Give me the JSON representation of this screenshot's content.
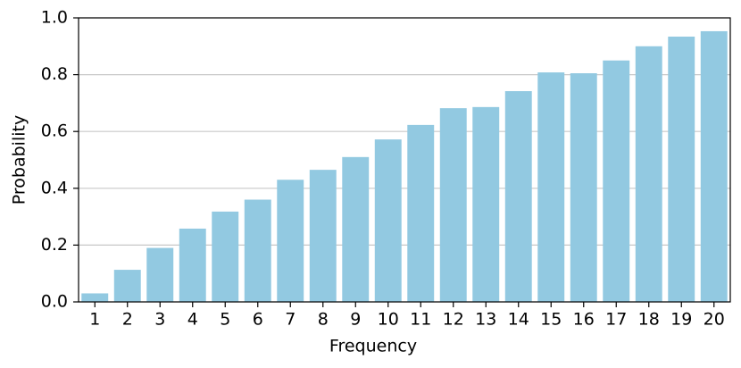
{
  "chart_data": {
    "type": "bar",
    "x_label": "Frequency",
    "y_label": "Probability",
    "categories": [
      "1",
      "2",
      "3",
      "4",
      "5",
      "6",
      "7",
      "8",
      "9",
      "10",
      "11",
      "12",
      "13",
      "14",
      "15",
      "16",
      "17",
      "18",
      "19",
      "20"
    ],
    "values": [
      0.03,
      0.113,
      0.19,
      0.258,
      0.318,
      0.36,
      0.43,
      0.465,
      0.51,
      0.572,
      0.623,
      0.682,
      0.686,
      0.742,
      0.808,
      0.805,
      0.85,
      0.9,
      0.934,
      0.953
    ],
    "color": "#92c9e1",
    "ylim": [
      0,
      1.0
    ],
    "yticks": [
      {
        "value": 0,
        "label": "0.0"
      },
      0.2,
      0.4,
      0.6,
      0.8,
      {
        "value": 1.0,
        "label": "1.0"
      }
    ],
    "grid": true
  }
}
